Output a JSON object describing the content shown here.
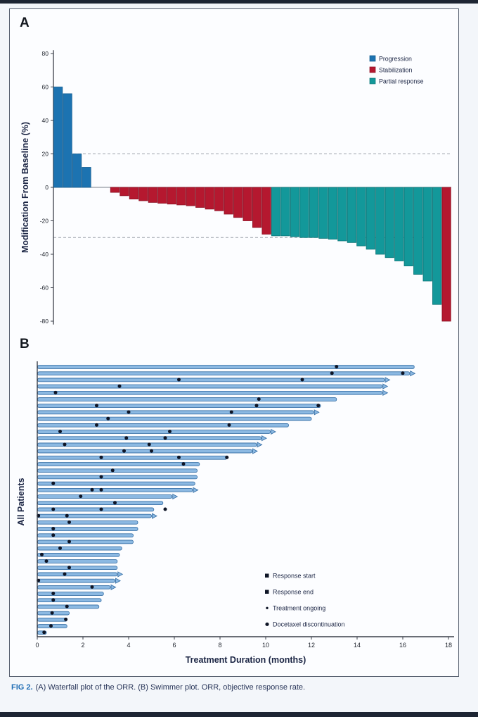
{
  "figure": {
    "panel_a": {
      "label": "A"
    },
    "panel_b": {
      "label": "B"
    },
    "caption": {
      "tag": "FIG 2.",
      "text": "(A) Waterfall plot of the ORR. (B) Swimmer plot. ORR, objective response rate."
    }
  },
  "colors": {
    "progression": "#1c73b1",
    "progression_edge": "#115a8e",
    "stabilization": "#b5182f",
    "stabilization_edge": "#8a0f22",
    "partial_response": "#13989a",
    "partial_response_edge": "#0c7476",
    "swim_fill": "#8cb9e2",
    "swim_edge": "#3a72a8",
    "marker": "#0e1526",
    "axis": "#3a3f49",
    "ref_line": "#9aa0a8",
    "label_text": "#1b2544",
    "tick_text": "#20252e"
  },
  "chart_data": [
    {
      "type": "bar",
      "title": "Waterfall plot of the ORR",
      "ylabel": "Modification From Baseline (%)",
      "ylim": [
        -80,
        80
      ],
      "yticks": [
        80,
        60,
        40,
        20,
        0,
        -20,
        -40,
        -60,
        -80
      ],
      "reference_lines": [
        20,
        -30
      ],
      "grid": false,
      "legend_position": "top-right",
      "series": [
        {
          "name": "Progression",
          "key": "progression"
        },
        {
          "name": "Stabilization",
          "key": "stabilization"
        },
        {
          "name": "Partial response",
          "key": "partial_response"
        }
      ],
      "bars": [
        {
          "v": 60,
          "cat": "progression"
        },
        {
          "v": 56,
          "cat": "progression"
        },
        {
          "v": 20,
          "cat": "progression"
        },
        {
          "v": 12,
          "cat": "progression"
        },
        {
          "v": 0,
          "cat": "none"
        },
        {
          "v": 0,
          "cat": "none"
        },
        {
          "v": -3,
          "cat": "stabilization"
        },
        {
          "v": -5,
          "cat": "stabilization"
        },
        {
          "v": -7,
          "cat": "stabilization"
        },
        {
          "v": -8,
          "cat": "stabilization"
        },
        {
          "v": -9,
          "cat": "stabilization"
        },
        {
          "v": -9.5,
          "cat": "stabilization"
        },
        {
          "v": -10,
          "cat": "stabilization"
        },
        {
          "v": -10.5,
          "cat": "stabilization"
        },
        {
          "v": -11,
          "cat": "stabilization"
        },
        {
          "v": -12,
          "cat": "stabilization"
        },
        {
          "v": -13,
          "cat": "stabilization"
        },
        {
          "v": -14,
          "cat": "stabilization"
        },
        {
          "v": -16,
          "cat": "stabilization"
        },
        {
          "v": -18,
          "cat": "stabilization"
        },
        {
          "v": -20,
          "cat": "stabilization"
        },
        {
          "v": -24,
          "cat": "stabilization"
        },
        {
          "v": -28,
          "cat": "stabilization"
        },
        {
          "v": -29,
          "cat": "partial_response"
        },
        {
          "v": -29,
          "cat": "partial_response"
        },
        {
          "v": -29.5,
          "cat": "partial_response"
        },
        {
          "v": -30,
          "cat": "partial_response"
        },
        {
          "v": -30,
          "cat": "partial_response"
        },
        {
          "v": -30.5,
          "cat": "partial_response"
        },
        {
          "v": -31,
          "cat": "partial_response"
        },
        {
          "v": -32,
          "cat": "partial_response"
        },
        {
          "v": -33,
          "cat": "partial_response"
        },
        {
          "v": -35,
          "cat": "partial_response"
        },
        {
          "v": -37,
          "cat": "partial_response"
        },
        {
          "v": -40,
          "cat": "partial_response"
        },
        {
          "v": -42,
          "cat": "partial_response"
        },
        {
          "v": -44,
          "cat": "partial_response"
        },
        {
          "v": -47,
          "cat": "partial_response"
        },
        {
          "v": -52,
          "cat": "partial_response"
        },
        {
          "v": -56,
          "cat": "partial_response"
        },
        {
          "v": -70,
          "cat": "partial_response"
        },
        {
          "v": -80,
          "cat": "stabilization"
        }
      ]
    },
    {
      "type": "bar",
      "orientation": "horizontal",
      "title": "Swimmer plot",
      "xlabel": "Treatment Duration (months)",
      "ylabel": "All Patients",
      "xlim": [
        0,
        18
      ],
      "xticks": [
        0,
        2,
        4,
        6,
        8,
        10,
        12,
        14,
        16,
        18
      ],
      "grid": false,
      "legend_position": "bottom-right",
      "legend": [
        {
          "label": "Response start",
          "marker": "square"
        },
        {
          "label": "Response end",
          "marker": "square"
        },
        {
          "label": "Treatment ongoing",
          "marker": "plus"
        },
        {
          "label": "Docetaxel discontinuation",
          "marker": "circle"
        }
      ],
      "patients": [
        {
          "months": 16.5,
          "ongoing": false,
          "dots": [
            13.1
          ]
        },
        {
          "months": 16.3,
          "ongoing": true,
          "dots": [
            12.9,
            16.0
          ]
        },
        {
          "months": 15.2,
          "ongoing": true,
          "dots": [
            6.2,
            11.6
          ]
        },
        {
          "months": 15.1,
          "ongoing": true,
          "dots": [
            3.6
          ]
        },
        {
          "months": 15.1,
          "ongoing": true,
          "dots": [
            0.8
          ]
        },
        {
          "months": 13.1,
          "ongoing": false,
          "dots": [
            9.7
          ]
        },
        {
          "months": 12.4,
          "ongoing": false,
          "dots": [
            2.6,
            9.6,
            12.3
          ]
        },
        {
          "months": 12.1,
          "ongoing": true,
          "dots": [
            4.0,
            8.5
          ]
        },
        {
          "months": 12.0,
          "ongoing": false,
          "dots": [
            3.1
          ]
        },
        {
          "months": 11.0,
          "ongoing": false,
          "dots": [
            2.6,
            8.4
          ]
        },
        {
          "months": 10.2,
          "ongoing": true,
          "dots": [
            1.0,
            5.8
          ]
        },
        {
          "months": 9.8,
          "ongoing": true,
          "dots": [
            3.9,
            5.6
          ]
        },
        {
          "months": 9.6,
          "ongoing": true,
          "dots": [
            1.2,
            4.9
          ]
        },
        {
          "months": 9.4,
          "ongoing": true,
          "dots": [
            3.8,
            5.0
          ]
        },
        {
          "months": 8.3,
          "ongoing": false,
          "dots": [
            2.8,
            6.2,
            8.3
          ]
        },
        {
          "months": 7.1,
          "ongoing": false,
          "dots": [
            6.4
          ]
        },
        {
          "months": 7.0,
          "ongoing": false,
          "dots": [
            3.3
          ]
        },
        {
          "months": 7.0,
          "ongoing": false,
          "dots": [
            2.8
          ]
        },
        {
          "months": 6.9,
          "ongoing": false,
          "dots": [
            0.7
          ]
        },
        {
          "months": 6.8,
          "ongoing": true,
          "dots": [
            2.4,
            2.8
          ]
        },
        {
          "months": 5.9,
          "ongoing": true,
          "dots": [
            1.9
          ]
        },
        {
          "months": 5.5,
          "ongoing": false,
          "dots": [
            3.4
          ]
        },
        {
          "months": 5.1,
          "ongoing": false,
          "dots": [
            0.7,
            2.8,
            5.6
          ]
        },
        {
          "months": 5.0,
          "ongoing": true,
          "dots": [
            0.05,
            1.3
          ]
        },
        {
          "months": 4.4,
          "ongoing": false,
          "dots": [
            1.4
          ]
        },
        {
          "months": 4.4,
          "ongoing": false,
          "dots": [
            0.7
          ]
        },
        {
          "months": 4.2,
          "ongoing": false,
          "dots": [
            0.7
          ]
        },
        {
          "months": 4.2,
          "ongoing": false,
          "dots": [
            1.4
          ]
        },
        {
          "months": 3.7,
          "ongoing": false,
          "dots": [
            1.0
          ]
        },
        {
          "months": 3.6,
          "ongoing": false,
          "dots": [
            0.2
          ]
        },
        {
          "months": 3.5,
          "ongoing": false,
          "dots": [
            0.4
          ]
        },
        {
          "months": 3.5,
          "ongoing": false,
          "dots": [
            1.4
          ]
        },
        {
          "months": 3.5,
          "ongoing": true,
          "dots": [
            1.2
          ]
        },
        {
          "months": 3.4,
          "ongoing": true,
          "dots": [
            0.05
          ]
        },
        {
          "months": 3.2,
          "ongoing": true,
          "dots": [
            2.4
          ]
        },
        {
          "months": 2.9,
          "ongoing": false,
          "dots": [
            0.7
          ]
        },
        {
          "months": 2.8,
          "ongoing": false,
          "dots": [
            0.7
          ]
        },
        {
          "months": 2.7,
          "ongoing": false,
          "dots": [
            1.3
          ]
        },
        {
          "months": 1.4,
          "ongoing": false,
          "dots": [
            0.65
          ]
        },
        {
          "months": 1.3,
          "ongoing": false,
          "dots": [
            1.25
          ]
        },
        {
          "months": 1.3,
          "ongoing": false,
          "dots": [
            0.6
          ]
        },
        {
          "months": 0.4,
          "ongoing": false,
          "dots": [
            0.3
          ]
        }
      ]
    }
  ]
}
